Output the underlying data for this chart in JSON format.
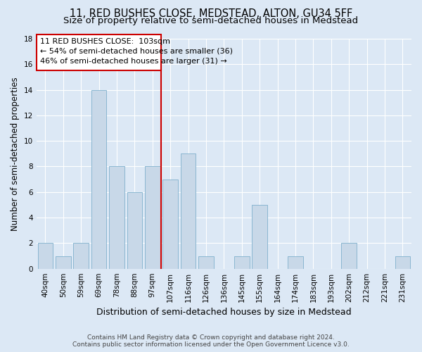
{
  "title": "11, RED BUSHES CLOSE, MEDSTEAD, ALTON, GU34 5FF",
  "subtitle": "Size of property relative to semi-detached houses in Medstead",
  "xlabel": "Distribution of semi-detached houses by size in Medstead",
  "ylabel": "Number of semi-detached properties",
  "categories": [
    "40sqm",
    "50sqm",
    "59sqm",
    "69sqm",
    "78sqm",
    "88sqm",
    "97sqm",
    "107sqm",
    "116sqm",
    "126sqm",
    "136sqm",
    "145sqm",
    "155sqm",
    "164sqm",
    "174sqm",
    "183sqm",
    "193sqm",
    "202sqm",
    "212sqm",
    "221sqm",
    "231sqm"
  ],
  "values": [
    2,
    1,
    2,
    14,
    8,
    6,
    8,
    7,
    9,
    1,
    0,
    1,
    5,
    0,
    1,
    0,
    0,
    2,
    0,
    0,
    1
  ],
  "bar_color": "#c8d8e8",
  "bar_edge_color": "#7fb0cc",
  "property_label": "11 RED BUSHES CLOSE:  103sqm",
  "pct_smaller": 54,
  "n_smaller": 36,
  "pct_larger": 46,
  "n_larger": 31,
  "vline_x_index": 7,
  "ylim": [
    0,
    18
  ],
  "yticks": [
    0,
    2,
    4,
    6,
    8,
    10,
    12,
    14,
    16,
    18
  ],
  "annotation_box_color": "#cc0000",
  "vline_color": "#cc0000",
  "footer1": "Contains HM Land Registry data © Crown copyright and database right 2024.",
  "footer2": "Contains public sector information licensed under the Open Government Licence v3.0.",
  "background_color": "#dce8f5",
  "title_fontsize": 10.5,
  "subtitle_fontsize": 9.5,
  "xlabel_fontsize": 9,
  "ylabel_fontsize": 8.5,
  "tick_fontsize": 7.5,
  "annotation_fontsize": 8,
  "footer_fontsize": 6.5
}
